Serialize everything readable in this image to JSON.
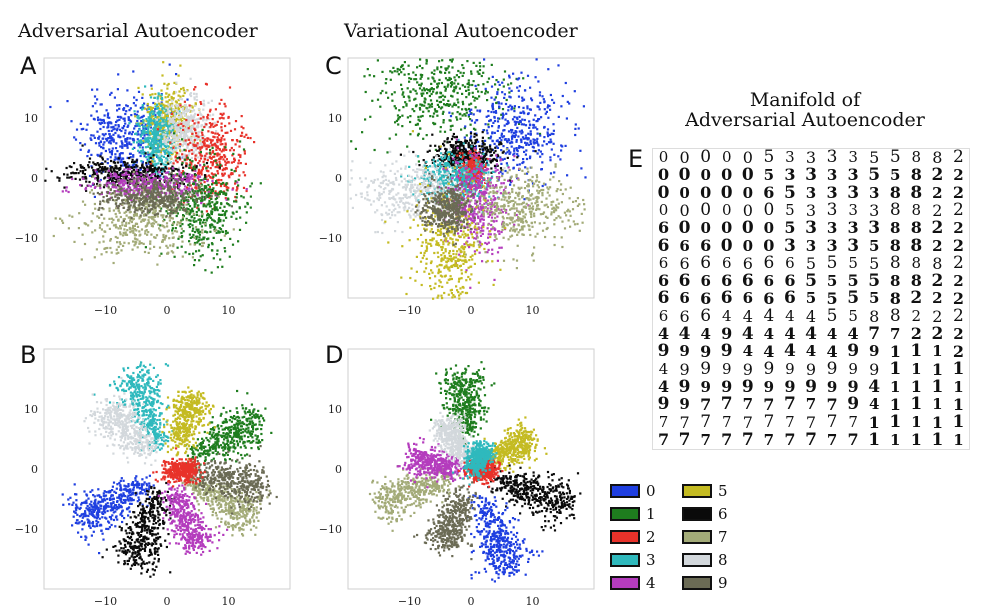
{
  "titles": {
    "col1": "Adversarial Autoencoder",
    "col2": "Variational Autoencoder"
  },
  "manifold": {
    "title_line1": "Manifold of",
    "title_line2": "Adversarial Autoencoder",
    "letter": "E",
    "rows": [
      "000005333355882",
      "000005333355822",
      "000006533338822",
      "000000533338822",
      "600000533338822",
      "666000333358822",
      "666666655558882",
      "666666655558822",
      "666666655558222",
      "666444445588222",
      "444944444477222",
      "999944444991112",
      "499999999991111",
      "499999999941111",
      "997777777941111",
      "777777777711111",
      "777777777711111"
    ]
  },
  "legend": {
    "items": [
      {
        "label": "0",
        "color": "#1f3fe0"
      },
      {
        "label": "1",
        "color": "#1e7d1e"
      },
      {
        "label": "2",
        "color": "#e8322a"
      },
      {
        "label": "3",
        "color": "#2fb9bd"
      },
      {
        "label": "4",
        "color": "#b43cbd"
      },
      {
        "label": "5",
        "color": "#c4bb22"
      },
      {
        "label": "6",
        "color": "#0a0a0a"
      },
      {
        "label": "7",
        "color": "#a3ab78"
      },
      {
        "label": "8",
        "color": "#d3d8dc"
      },
      {
        "label": "9",
        "color": "#6b6b55"
      }
    ]
  },
  "chart_data": [
    {
      "panel": "A",
      "type": "scatter",
      "title": "Adversarial Autoencoder",
      "distribution": "gaussian",
      "xlim": [
        -20,
        20
      ],
      "ylim": [
        -20,
        20
      ],
      "xticks": [
        -10,
        0,
        10
      ],
      "yticks": [
        -10,
        0,
        10
      ],
      "clusters": [
        {
          "digit": "0",
          "cx": -7,
          "cy": 7,
          "sx": 3.5,
          "sy": 3.5
        },
        {
          "digit": "5",
          "cx": 0,
          "cy": 10,
          "sx": 2.0,
          "sy": 3.0
        },
        {
          "digit": "3",
          "cx": -2,
          "cy": 7,
          "sx": 1.6,
          "sy": 3.0
        },
        {
          "digit": "8",
          "cx": 3,
          "cy": 8,
          "sx": 2.0,
          "sy": 3.0
        },
        {
          "digit": "2",
          "cx": 7,
          "cy": 4,
          "sx": 3.0,
          "sy": 4.0
        },
        {
          "digit": "6",
          "cx": -7,
          "cy": 1,
          "sx": 5.0,
          "sy": 1.2
        },
        {
          "digit": "4",
          "cx": -3,
          "cy": -1,
          "sx": 5.0,
          "sy": 1.2
        },
        {
          "digit": "1",
          "cx": 6,
          "cy": -5,
          "sx": 3.0,
          "sy": 4.0
        },
        {
          "digit": "7",
          "cx": -4,
          "cy": -7,
          "sx": 5.0,
          "sy": 2.8
        },
        {
          "digit": "9",
          "cx": -3,
          "cy": -3,
          "sx": 4.0,
          "sy": 1.5
        }
      ]
    },
    {
      "panel": "C",
      "type": "scatter",
      "title": "Variational Autoencoder",
      "distribution": "gaussian",
      "xlim": [
        -20,
        20
      ],
      "ylim": [
        -20,
        20
      ],
      "xticks": [
        -10,
        0,
        10
      ],
      "yticks": [
        -10,
        0,
        10
      ],
      "clusters": [
        {
          "digit": "1",
          "cx": -6,
          "cy": 14,
          "sx": 5.0,
          "sy": 4.0
        },
        {
          "digit": "0",
          "cx": 7,
          "cy": 8,
          "sx": 4.0,
          "sy": 4.0
        },
        {
          "digit": "6",
          "cx": -1,
          "cy": 4,
          "sx": 3.0,
          "sy": 1.5
        },
        {
          "digit": "2",
          "cx": 0,
          "cy": 1,
          "sx": 1.0,
          "sy": 1.5
        },
        {
          "digit": "3",
          "cx": -3,
          "cy": 0,
          "sx": 3.0,
          "sy": 2.0
        },
        {
          "digit": "8",
          "cx": -9,
          "cy": -2,
          "sx": 5.0,
          "sy": 2.5
        },
        {
          "digit": "4",
          "cx": 1,
          "cy": -4,
          "sx": 2.5,
          "sy": 4.0
        },
        {
          "digit": "7",
          "cx": 8,
          "cy": -5,
          "sx": 4.0,
          "sy": 3.0
        },
        {
          "digit": "5",
          "cx": -4,
          "cy": -12,
          "sx": 3.0,
          "sy": 5.0
        },
        {
          "digit": "9",
          "cx": -4,
          "cy": -5,
          "sx": 2.0,
          "sy": 2.0
        }
      ]
    },
    {
      "panel": "B",
      "type": "scatter",
      "distribution": "mixture of 10 gaussians (spokes)",
      "xlim": [
        -20,
        20
      ],
      "ylim": [
        -20,
        20
      ],
      "xticks": [
        -10,
        0,
        10
      ],
      "yticks": [
        -10,
        0,
        10
      ],
      "clusters": [
        {
          "digit": "0",
          "angle": 210,
          "r0": 4,
          "r1": 17
        },
        {
          "digit": "6",
          "angle": 250,
          "r0": 4,
          "r1": 17
        },
        {
          "digit": "1",
          "angle": 30,
          "r0": 4,
          "r1": 17
        },
        {
          "digit": "7",
          "angle": 330,
          "r0": 4,
          "r1": 16
        },
        {
          "digit": "9",
          "angle": 350,
          "r0": 4,
          "r1": 16
        },
        {
          "digit": "3",
          "angle": 110,
          "r0": 4,
          "r1": 17
        },
        {
          "digit": "8",
          "angle": 135,
          "r0": 4,
          "r1": 15
        },
        {
          "digit": "5",
          "angle": 70,
          "r0": 4,
          "r1": 13
        },
        {
          "digit": "4",
          "angle": 290,
          "r0": 3,
          "r1": 14
        },
        {
          "digit": "2",
          "angle": 0,
          "r0": 0,
          "r1": 4
        }
      ]
    },
    {
      "panel": "D",
      "type": "scatter",
      "distribution": "mixture of 10 gaussians (spokes)",
      "xlim": [
        -20,
        20
      ],
      "ylim": [
        -20,
        20
      ],
      "xticks": [
        -10,
        0,
        10
      ],
      "yticks": [
        -10,
        0,
        10
      ],
      "clusters": [
        {
          "digit": "1",
          "angle": 95,
          "r0": 6,
          "r1": 16
        },
        {
          "digit": "6",
          "angle": 340,
          "r0": 4,
          "r1": 17
        },
        {
          "digit": "0",
          "angle": 290,
          "r0": 5,
          "r1": 18
        },
        {
          "digit": "7",
          "angle": 200,
          "r0": 4,
          "r1": 16
        },
        {
          "digit": "4",
          "angle": 170,
          "r0": 2,
          "r1": 10
        },
        {
          "digit": "5",
          "angle": 30,
          "r0": 3,
          "r1": 11
        },
        {
          "digit": "8",
          "angle": 120,
          "r0": 2,
          "r1": 9
        },
        {
          "digit": "2",
          "angle": 0,
          "r0": 0,
          "r1": 3
        },
        {
          "digit": "3",
          "angle": 60,
          "r0": 0,
          "r1": 4
        },
        {
          "digit": "9",
          "angle": 250,
          "r0": 4,
          "r1": 14
        }
      ]
    }
  ]
}
